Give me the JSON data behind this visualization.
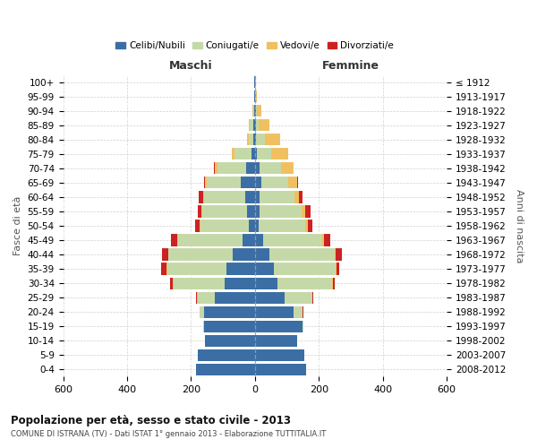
{
  "age_groups": [
    "0-4",
    "5-9",
    "10-14",
    "15-19",
    "20-24",
    "25-29",
    "30-34",
    "35-39",
    "40-44",
    "45-49",
    "50-54",
    "55-59",
    "60-64",
    "65-69",
    "70-74",
    "75-79",
    "80-84",
    "85-89",
    "90-94",
    "95-99",
    "100+"
  ],
  "birth_years": [
    "2008-2012",
    "2003-2007",
    "1998-2002",
    "1993-1997",
    "1988-1992",
    "1983-1987",
    "1978-1982",
    "1973-1977",
    "1968-1972",
    "1963-1967",
    "1958-1962",
    "1953-1957",
    "1948-1952",
    "1943-1947",
    "1938-1942",
    "1933-1937",
    "1928-1932",
    "1923-1927",
    "1918-1922",
    "1913-1917",
    "≤ 1912"
  ],
  "maschi": {
    "celibi": [
      185,
      180,
      155,
      160,
      160,
      125,
      95,
      90,
      70,
      40,
      20,
      25,
      30,
      45,
      28,
      12,
      4,
      4,
      2,
      1,
      1
    ],
    "coniugati": [
      0,
      0,
      0,
      2,
      12,
      55,
      160,
      185,
      200,
      200,
      150,
      140,
      130,
      105,
      88,
      52,
      14,
      12,
      4,
      1,
      0
    ],
    "vedovi": [
      0,
      0,
      0,
      0,
      0,
      1,
      1,
      2,
      2,
      2,
      2,
      2,
      3,
      5,
      10,
      9,
      6,
      4,
      2,
      0,
      0
    ],
    "divorziati": [
      0,
      0,
      0,
      0,
      0,
      4,
      10,
      16,
      18,
      22,
      14,
      12,
      14,
      4,
      2,
      0,
      0,
      0,
      0,
      0,
      0
    ]
  },
  "femmine": {
    "nubili": [
      160,
      155,
      132,
      148,
      122,
      92,
      70,
      60,
      45,
      25,
      12,
      15,
      15,
      20,
      14,
      7,
      4,
      3,
      2,
      1,
      1
    ],
    "coniugate": [
      0,
      0,
      0,
      4,
      28,
      88,
      172,
      192,
      205,
      185,
      145,
      130,
      110,
      84,
      68,
      44,
      26,
      10,
      4,
      1,
      0
    ],
    "vedove": [
      0,
      0,
      0,
      0,
      0,
      1,
      1,
      2,
      3,
      5,
      8,
      12,
      14,
      28,
      38,
      52,
      48,
      32,
      14,
      4,
      2
    ],
    "divorziate": [
      0,
      0,
      0,
      0,
      1,
      2,
      6,
      10,
      18,
      20,
      16,
      16,
      10,
      4,
      2,
      0,
      0,
      0,
      0,
      0,
      0
    ]
  },
  "color_celibi": "#3b6ea5",
  "color_coniugati": "#c5d9a8",
  "color_vedovi": "#f0c060",
  "color_divorziati": "#cc2222",
  "title": "Popolazione per età, sesso e stato civile - 2013",
  "subtitle": "COMUNE DI ISTRANA (TV) - Dati ISTAT 1° gennaio 2013 - Elaborazione TUTTITALIA.IT",
  "xlabel_left": "Maschi",
  "xlabel_right": "Femmine",
  "ylabel_left": "Fasce di età",
  "ylabel_right": "Anni di nascita",
  "xlim": 600,
  "background_color": "#ffffff",
  "grid_color": "#cccccc"
}
